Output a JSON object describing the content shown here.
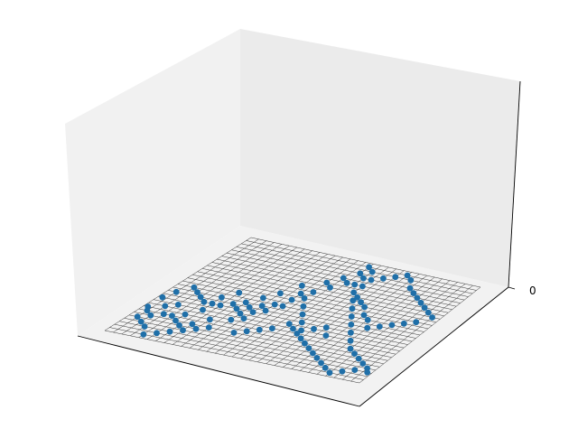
{
  "chart_data": {
    "type": "scatter",
    "title": "",
    "xlabel": "",
    "ylabel": "",
    "zlabel": "",
    "grid_size": 30,
    "zlim": [
      -0.3,
      1.0
    ],
    "z_tick_labels": [
      "0"
    ],
    "grid_on": true,
    "colors": {
      "marker": "#1f6fa8",
      "mesh": "#333333",
      "pane_back": "#ebebeb",
      "pane_side": "#e4e4e4",
      "pane_floor": "#f2f2f2"
    },
    "points": [
      [
        0.5,
        8
      ],
      [
        2,
        9
      ],
      [
        3,
        10
      ],
      [
        5,
        8
      ],
      [
        6,
        10
      ],
      [
        6,
        12
      ],
      [
        8,
        8
      ],
      [
        9,
        14
      ],
      [
        10,
        9
      ],
      [
        11,
        12
      ],
      [
        7,
        16
      ],
      [
        10,
        16
      ],
      [
        11,
        18
      ],
      [
        13,
        19
      ],
      [
        12,
        21
      ],
      [
        14,
        23
      ],
      [
        15,
        25
      ],
      [
        16,
        27
      ],
      [
        17,
        28
      ],
      [
        16,
        29
      ],
      [
        17,
        26
      ],
      [
        18,
        22
      ],
      [
        19,
        20
      ],
      [
        20,
        18
      ],
      [
        21,
        16
      ],
      [
        22,
        14
      ],
      [
        23,
        12
      ],
      [
        24,
        10
      ],
      [
        25,
        8
      ],
      [
        26,
        7
      ],
      [
        27,
        6
      ],
      [
        28,
        5
      ],
      [
        29,
        4
      ],
      [
        29.5,
        3
      ],
      [
        28,
        3
      ],
      [
        27,
        2
      ],
      [
        26,
        1
      ],
      [
        25,
        2
      ],
      [
        24,
        3
      ],
      [
        23,
        4
      ],
      [
        22,
        5
      ],
      [
        21,
        6
      ],
      [
        20,
        7
      ],
      [
        19,
        8
      ],
      [
        18,
        10
      ],
      [
        17,
        12
      ],
      [
        16,
        14
      ],
      [
        15,
        16
      ],
      [
        14,
        18
      ],
      [
        13,
        15
      ],
      [
        12,
        13
      ],
      [
        11,
        10
      ],
      [
        10,
        11
      ],
      [
        9,
        6
      ],
      [
        8,
        5
      ],
      [
        7,
        4
      ],
      [
        6,
        3
      ],
      [
        5,
        2
      ],
      [
        4,
        1
      ],
      [
        3,
        3
      ],
      [
        2,
        4
      ],
      [
        1,
        5
      ],
      [
        0.5,
        11
      ],
      [
        1,
        13
      ],
      [
        2,
        15
      ],
      [
        3,
        14
      ],
      [
        4,
        13
      ],
      [
        5,
        12
      ],
      [
        6,
        14
      ],
      [
        7,
        12
      ],
      [
        8,
        13
      ],
      [
        9,
        12
      ],
      [
        10,
        13
      ],
      [
        11,
        14
      ],
      [
        12,
        15
      ],
      [
        13,
        17
      ],
      [
        14,
        20
      ],
      [
        15,
        22
      ],
      [
        16,
        24
      ],
      [
        17,
        24
      ],
      [
        18,
        26
      ],
      [
        19,
        27
      ],
      [
        20,
        28
      ],
      [
        21,
        29
      ],
      [
        22,
        28
      ],
      [
        23,
        26
      ],
      [
        24,
        25
      ],
      [
        25,
        24
      ],
      [
        26,
        23
      ],
      [
        27,
        22
      ],
      [
        28,
        21
      ],
      [
        29,
        20
      ],
      [
        28,
        18
      ],
      [
        27,
        17
      ],
      [
        26,
        16
      ],
      [
        25,
        15
      ],
      [
        24,
        14
      ],
      [
        23,
        16
      ],
      [
        22,
        17
      ],
      [
        21,
        19
      ],
      [
        20,
        20
      ],
      [
        19,
        21
      ],
      [
        18,
        24
      ],
      [
        4,
        7
      ],
      [
        5,
        6
      ],
      [
        6,
        5
      ],
      [
        7,
        6
      ],
      [
        3,
        7
      ],
      [
        2,
        6
      ],
      [
        1,
        7
      ],
      [
        12,
        6
      ],
      [
        13,
        7
      ],
      [
        14,
        8
      ],
      [
        15,
        9
      ],
      [
        16,
        11
      ],
      [
        17,
        10
      ],
      [
        18,
        9
      ],
      [
        19,
        11
      ],
      [
        20,
        12
      ],
      [
        21,
        10
      ]
    ]
  }
}
